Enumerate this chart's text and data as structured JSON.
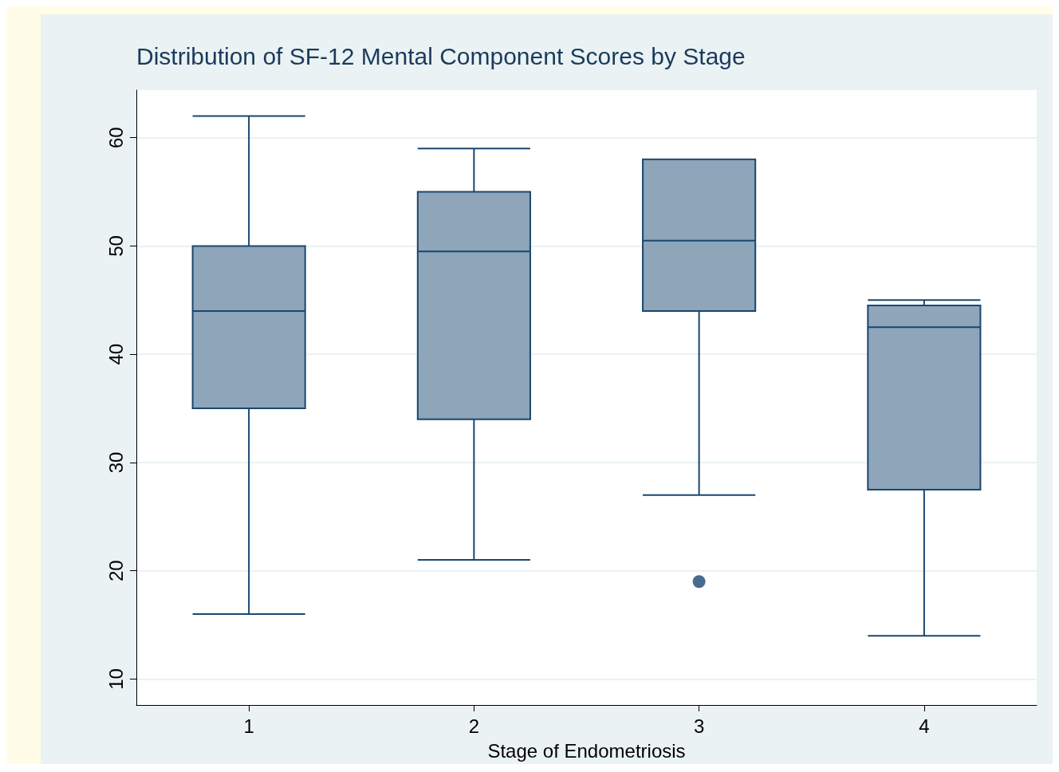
{
  "chart_data": {
    "type": "box",
    "title": "Distribution of SF-12 Mental Component Scores by Stage",
    "xlabel": "Stage of Endometriosis",
    "categories": [
      "1",
      "2",
      "3",
      "4"
    ],
    "color": "#8ea5ba",
    "boxes": [
      {
        "low": 16,
        "q1": 35,
        "median": 44,
        "q3": 50,
        "high": 62
      },
      {
        "low": 21,
        "q1": 34,
        "median": 49.5,
        "q3": 55,
        "high": 59
      },
      {
        "low": 27,
        "q1": 44,
        "median": 50.5,
        "q3": 58,
        "high": 58,
        "outliers": [
          19
        ]
      },
      {
        "low": 14,
        "q1": 27.5,
        "median": 42.5,
        "q3": 44.5,
        "high": 45
      }
    ],
    "ylim": [
      7.6,
      64.4
    ],
    "yticks": [
      10,
      20,
      30,
      40,
      50,
      60
    ],
    "grid": "y",
    "marker": "circle"
  }
}
